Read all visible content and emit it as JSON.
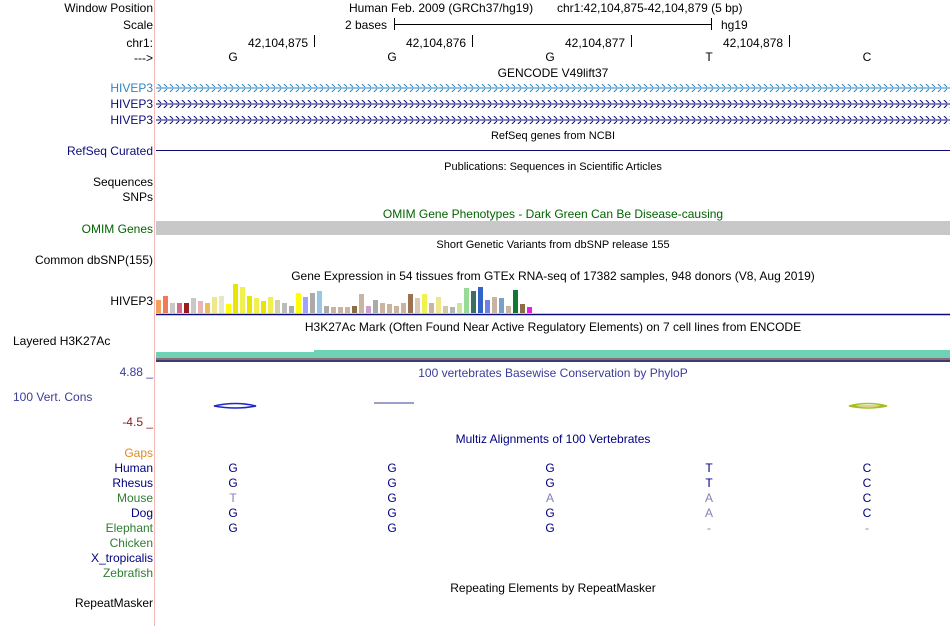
{
  "labels": {
    "window_position": "Window Position",
    "scale": "Scale",
    "chr": "chr1:",
    "strand": "--->",
    "gencode_1": "HIVEP3",
    "gencode_2": "HIVEP3",
    "gencode_3": "HIVEP3",
    "refseq": "RefSeq Curated",
    "sequences": "Sequences",
    "snps": "SNPs",
    "omim": "OMIM Genes",
    "dbsnp": "Common dbSNP(155)",
    "gtex": "HIVEP3",
    "h3k27ac": "Layered H3K27Ac",
    "cons_max": "4.88 _",
    "cons_label": "100 Vert. Cons",
    "cons_min": "-4.5 _",
    "gaps": "Gaps",
    "repeatmasker": "RepeatMasker"
  },
  "header": {
    "assembly": "Human Feb. 2009 (GRCh37/hg19)",
    "position": "chr1:42,104,875-42,104,879 (5 bp)",
    "scale_bar": "2 bases",
    "scale_db": "hg19",
    "coords": [
      "42,104,875",
      "42,104,876",
      "42,104,877",
      "42,104,878"
    ],
    "bases": [
      "G",
      "G",
      "G",
      "T",
      "C"
    ]
  },
  "track_titles": {
    "gencode": "GENCODE V49lift37",
    "refseq": "RefSeq genes from NCBI",
    "publications": "Publications: Sequences in Scientific Articles",
    "omim": "OMIM Gene Phenotypes - Dark Green Can Be Disease-causing",
    "dbsnp": "Short Genetic Variants from dbSNP release 155",
    "gtex": "Gene Expression in 54 tissues from GTEx RNA-seq of 17382 samples, 948 donors (V8, Aug 2019)",
    "h3k27ac": "H3K27Ac Mark (Often Found Near Active Regulatory Elements) on 7 cell lines from ENCODE",
    "phylop": "100 vertebrates Basewise Conservation by PhyloP",
    "multiz": "Multiz Alignments of 100 Vertebrates",
    "repeatmasker": "Repeating Elements by RepeatMasker"
  },
  "gtex_levels": [
    0.45,
    0.6,
    0.35,
    0.35,
    0.35,
    0.5,
    0.4,
    0.35,
    0.55,
    0.6,
    0.3,
    1.0,
    0.9,
    0.6,
    0.5,
    0.4,
    0.55,
    0.45,
    0.35,
    0.25,
    0.7,
    0.55,
    0.7,
    0.75,
    0.25,
    0.2,
    0.2,
    0.2,
    0.25,
    0.65,
    0.25,
    0.45,
    0.35,
    0.3,
    0.25,
    0.35,
    0.65,
    0.5,
    0.65,
    0.35,
    0.55,
    0.25,
    0.2,
    0.35,
    0.85,
    0.75,
    0.9,
    0.45,
    0.55,
    0.5,
    0.25,
    0.8,
    0.3,
    0.2
  ],
  "gtex_colors": [
    "#f5a05a",
    "#f07a5a",
    "#c8c8c8",
    "#d26a8a",
    "#9a1e1e",
    "#c8c8c8",
    "#e8b4b4",
    "#ecbe5a",
    "#f0e68c",
    "#e6e6c8",
    "#ffff00",
    "#e6e600",
    "#f0f050",
    "#e6e600",
    "#f0f050",
    "#e6e600",
    "#f0f050",
    "#d2d2aa",
    "#bbbbbb",
    "#aaaaaa",
    "#ffff00",
    "#a0a0ff",
    "#aaaaaa",
    "#96c8e6",
    "#aaaaaa",
    "#c8b4a0",
    "#c8b4a0",
    "#cdb4a0",
    "#8c6e46",
    "#c8b4a0",
    "#c8a0c8",
    "#aaaaaa",
    "#cdb4a0",
    "#c8b4a0",
    "#c8b4a0",
    "#c8b4a0",
    "#9b7350",
    "#dcc8b4",
    "#f0f050",
    "#c8b4a0",
    "#f0e68c",
    "#d2c8a0",
    "#b4b4b4",
    "#c8e6a0",
    "#96dc96",
    "#3c6e64",
    "#3264c8",
    "#6e82e6",
    "#c8b4a0",
    "#78a0c8",
    "#c8b4a0",
    "#0f7832",
    "#8c6e46",
    "#e61ee6"
  ],
  "species": [
    {
      "name": "Human",
      "color": "#000080",
      "bases": [
        "G",
        "G",
        "G",
        "T",
        "C"
      ],
      "base_color": "#000080"
    },
    {
      "name": "Rhesus",
      "color": "#000080",
      "bases": [
        "G",
        "G",
        "G",
        "T",
        "C"
      ],
      "base_color": "#000080"
    },
    {
      "name": "Mouse",
      "color": "#2e7d32",
      "bases": [
        "T",
        "G",
        "A",
        "A",
        "C"
      ],
      "base_color": "#000080"
    },
    {
      "name": "Dog",
      "color": "#000080",
      "bases": [
        "G",
        "G",
        "G",
        "A",
        "C"
      ],
      "base_color": "#000080"
    },
    {
      "name": "Elephant",
      "color": "#2e7d32",
      "bases": [
        "G",
        "G",
        "G",
        "-",
        "-"
      ],
      "base_color": "#000080"
    },
    {
      "name": "Chicken",
      "color": "#2e7d32",
      "bases": [
        "",
        "",
        "",
        "",
        ""
      ],
      "base_color": "#000080"
    },
    {
      "name": "X_tropicalis",
      "color": "#000080",
      "bases": [
        "",
        "",
        "",
        "",
        ""
      ],
      "base_color": "#000080"
    },
    {
      "name": "Zebrafish",
      "color": "#2e7d32",
      "bases": [
        "",
        "",
        "",
        "",
        ""
      ],
      "base_color": "#000080"
    }
  ],
  "mismatch_bases": [
    [
      2,
      0
    ],
    [
      2,
      2
    ],
    [
      2,
      3
    ],
    [
      3,
      3
    ],
    [
      4,
      3
    ],
    [
      4,
      4
    ]
  ],
  "colors": {
    "gencode": "#0c0c78",
    "gencode_label_first": "#2e86c1",
    "refseq": "#0c0c78",
    "omim_bar": "#c8c8c8",
    "omim_title": "#006400",
    "h3k27ac": "#6ed2b4",
    "phylop_title": "#3c3c9a",
    "multiz_title": "#000080",
    "gaps_label": "#e08a1e",
    "cons_label": "#3c3c9a",
    "cons_min": "#8b1a1a"
  }
}
